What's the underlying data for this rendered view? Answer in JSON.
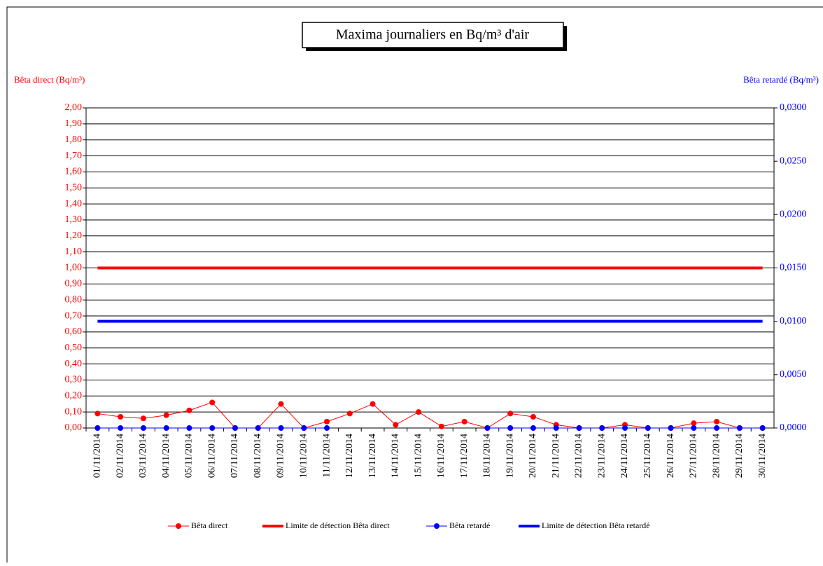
{
  "chart_data": {
    "type": "line",
    "title": "Maxima journaliers  en Bq/m³ d'air",
    "y_label": "Bêta direct (Bq/m³)",
    "y2_label": "Bêta retardé (Bq/m³)",
    "categories": [
      "01/11/2014",
      "02/11/2014",
      "03/11/2014",
      "04/11/2014",
      "05/11/2014",
      "06/11/2014",
      "07/11/2014",
      "08/11/2014",
      "09/11/2014",
      "10/11/2014",
      "11/11/2014",
      "12/11/2014",
      "13/11/2014",
      "14/11/2014",
      "15/11/2014",
      "16/11/2014",
      "17/11/2014",
      "18/11/2014",
      "19/11/2014",
      "20/11/2014",
      "21/11/2014",
      "22/11/2014",
      "23/11/2014",
      "24/11/2014",
      "25/11/2014",
      "26/11/2014",
      "27/11/2014",
      "28/11/2014",
      "29/11/2014",
      "30/11/2014"
    ],
    "series": [
      {
        "name": "Bêta direct",
        "color": "#ff0000",
        "markers": true,
        "axis": "y",
        "values": [
          0.09,
          0.07,
          0.06,
          0.08,
          0.11,
          0.16,
          0,
          0,
          0.15,
          0,
          0.04,
          0.09,
          0.15,
          0.02,
          0.1,
          0.01,
          0.04,
          0,
          0.09,
          0.07,
          0.02,
          0,
          0,
          0.02,
          0,
          0,
          0.03,
          0.04,
          0,
          0
        ]
      },
      {
        "name": "Limite de détection Bêta direct",
        "color": "#ff0000",
        "markers": false,
        "axis": "y",
        "values": [
          1,
          1,
          1,
          1,
          1,
          1,
          1,
          1,
          1,
          1,
          1,
          1,
          1,
          1,
          1,
          1,
          1,
          1,
          1,
          1,
          1,
          1,
          1,
          1,
          1,
          1,
          1,
          1,
          1,
          1
        ]
      },
      {
        "name": "Bêta retardé",
        "color": "#0000ff",
        "markers": true,
        "axis": "y2",
        "values": [
          0,
          0,
          0,
          0,
          0,
          0,
          0,
          0,
          0,
          0,
          0,
          null,
          null,
          null,
          null,
          null,
          null,
          0,
          0,
          0,
          0,
          0,
          0,
          0,
          0,
          0,
          0,
          0,
          0,
          0
        ]
      },
      {
        "name": "Limite de détection Bêta retardé",
        "color": "#0000ff",
        "markers": false,
        "axis": "y2",
        "values": [
          0.01,
          0.01,
          0.01,
          0.01,
          0.01,
          0.01,
          0.01,
          0.01,
          0.01,
          0.01,
          0.01,
          0.01,
          0.01,
          0.01,
          0.01,
          0.01,
          0.01,
          0.01,
          0.01,
          0.01,
          0.01,
          0.01,
          0.01,
          0.01,
          0.01,
          0.01,
          0.01,
          0.01,
          0.01,
          0.01
        ]
      }
    ],
    "ylim": [
      0,
      2
    ],
    "yticks": [
      {
        "value": 0,
        "label": "0,00"
      },
      {
        "value": 0.1,
        "label": "0,10"
      },
      {
        "value": 0.2,
        "label": "0,20"
      },
      {
        "value": 0.3,
        "label": "0,30"
      },
      {
        "value": 0.4,
        "label": "0,40"
      },
      {
        "value": 0.5,
        "label": "0,50"
      },
      {
        "value": 0.6,
        "label": "0,60"
      },
      {
        "value": 0.7,
        "label": "0,70"
      },
      {
        "value": 0.8,
        "label": "0,80"
      },
      {
        "value": 0.9,
        "label": "0,90"
      },
      {
        "value": 1,
        "label": "1,00"
      },
      {
        "value": 1.1,
        "label": "1,10"
      },
      {
        "value": 1.2,
        "label": "1,20"
      },
      {
        "value": 1.3,
        "label": "1,30"
      },
      {
        "value": 1.4,
        "label": "1,40"
      },
      {
        "value": 1.5,
        "label": "1,50"
      },
      {
        "value": 1.6,
        "label": "1,60"
      },
      {
        "value": 1.7,
        "label": "1,70"
      },
      {
        "value": 1.8,
        "label": "1,80"
      },
      {
        "value": 1.9,
        "label": "1,90"
      },
      {
        "value": 2,
        "label": "2,00"
      }
    ],
    "y2lim": [
      0,
      0.03
    ],
    "y2ticks": [
      {
        "value": 0,
        "label": "0,0000"
      },
      {
        "value": 0.005,
        "label": "0,0050"
      },
      {
        "value": 0.01,
        "label": "0,0100"
      },
      {
        "value": 0.015,
        "label": "0,0150"
      },
      {
        "value": 0.02,
        "label": "0,0200"
      },
      {
        "value": 0.025,
        "label": "0,0250"
      },
      {
        "value": 0.03,
        "label": "0,0300"
      }
    ],
    "y_color": "#ff0000",
    "y2_color": "#0000ff",
    "grid": true
  }
}
